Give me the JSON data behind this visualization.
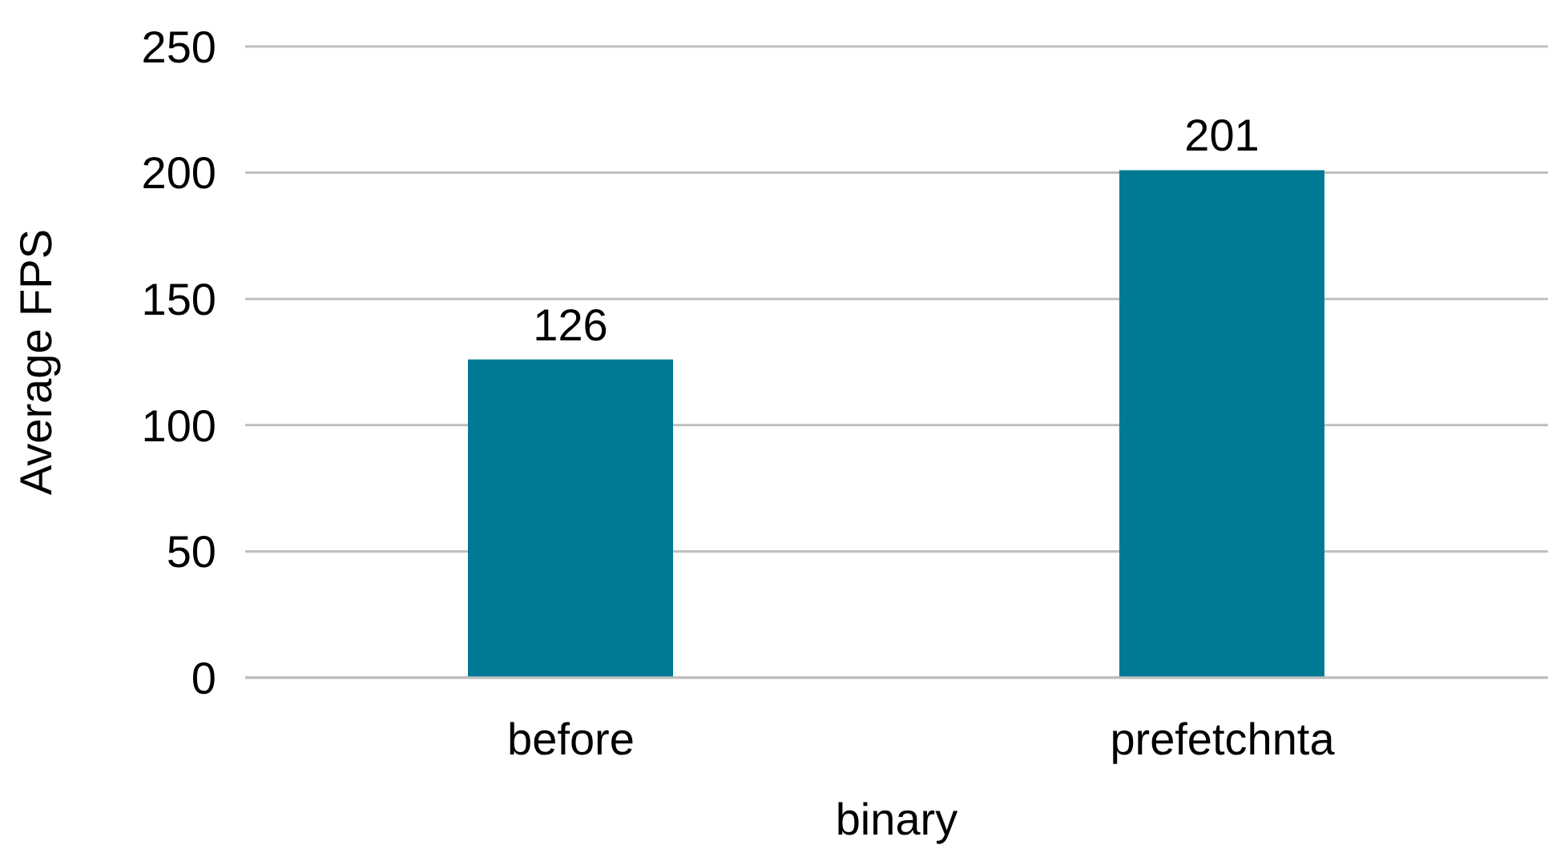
{
  "chart_data": {
    "type": "bar",
    "xlabel": "binary",
    "ylabel": "Average FPS",
    "categories": [
      "before",
      "prefetchnta"
    ],
    "values": [
      126,
      201
    ],
    "color": "#007a94",
    "ylim": [
      0,
      250
    ],
    "yticks": [
      0,
      50,
      100,
      150,
      200,
      250
    ],
    "grid": "y",
    "data_labels": true
  }
}
